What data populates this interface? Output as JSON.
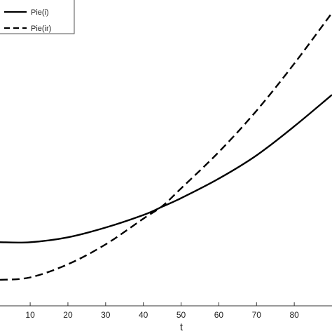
{
  "chart_data": {
    "type": "line",
    "xlabel": "t",
    "ylabel": "",
    "title": "",
    "xlim": [
      2,
      90
    ],
    "ylim": [
      0,
      1
    ],
    "x_ticks": [
      10,
      20,
      30,
      40,
      50,
      60,
      70,
      80
    ],
    "x_tick_labels": [
      "10",
      "20",
      "30",
      "40",
      "50",
      "60",
      "70",
      "80"
    ],
    "grid": false,
    "legend_position": "top-left",
    "series": [
      {
        "name": "Pie(i)",
        "style": "solid",
        "color": "#000000",
        "x": [
          2,
          10,
          20,
          30,
          40,
          45,
          50,
          60,
          70,
          80,
          90
        ],
        "y": [
          0.208,
          0.208,
          0.224,
          0.256,
          0.297,
          0.324,
          0.352,
          0.416,
          0.492,
          0.587,
          0.69
        ]
      },
      {
        "name": "Pie(ir)",
        "style": "dashed",
        "color": "#000000",
        "x": [
          2,
          10,
          20,
          30,
          40,
          45,
          50,
          60,
          70,
          80,
          90
        ],
        "y": [
          0.085,
          0.093,
          0.136,
          0.201,
          0.285,
          0.326,
          0.384,
          0.503,
          0.638,
          0.792,
          0.958
        ]
      }
    ]
  }
}
